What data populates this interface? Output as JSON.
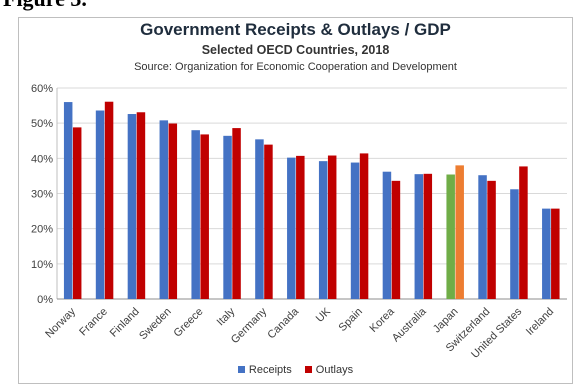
{
  "figure_label": "Figure 3.",
  "chart_data": {
    "type": "bar",
    "title": "Government Receipts & Outlays / GDP",
    "subtitle": "Selected OECD Countries, 2018",
    "source": "Source:  Organization for Economic Cooperation and Development",
    "categories": [
      "Norway",
      "France",
      "Finland",
      "Sweden",
      "Greece",
      "Italy",
      "Germany",
      "Canada",
      "UK",
      "Spain",
      "Korea",
      "Australia",
      "Japan",
      "Switzerland",
      "United States",
      "Ireland"
    ],
    "series": [
      {
        "name": "Receipts",
        "color": "#4472c4",
        "values": [
          56.0,
          53.6,
          52.6,
          50.8,
          48.0,
          46.4,
          45.4,
          40.2,
          39.2,
          38.8,
          36.2,
          35.5,
          35.4,
          35.2,
          31.2,
          25.7
        ]
      },
      {
        "name": "Outlays",
        "color": "#c00000",
        "values": [
          48.8,
          56.1,
          53.1,
          49.9,
          46.8,
          48.6,
          43.9,
          40.7,
          40.8,
          41.4,
          33.6,
          35.6,
          38.0,
          33.6,
          37.7,
          25.7
        ]
      }
    ],
    "highlight": {
      "category": "Japan",
      "colors": {
        "Receipts": "#70ad47",
        "Outlays": "#ed7d31"
      }
    },
    "ylim": [
      0,
      60
    ],
    "yticks": [
      "0%",
      "10%",
      "20%",
      "30%",
      "40%",
      "50%",
      "60%"
    ],
    "grid": true,
    "legend_position": "bottom"
  }
}
